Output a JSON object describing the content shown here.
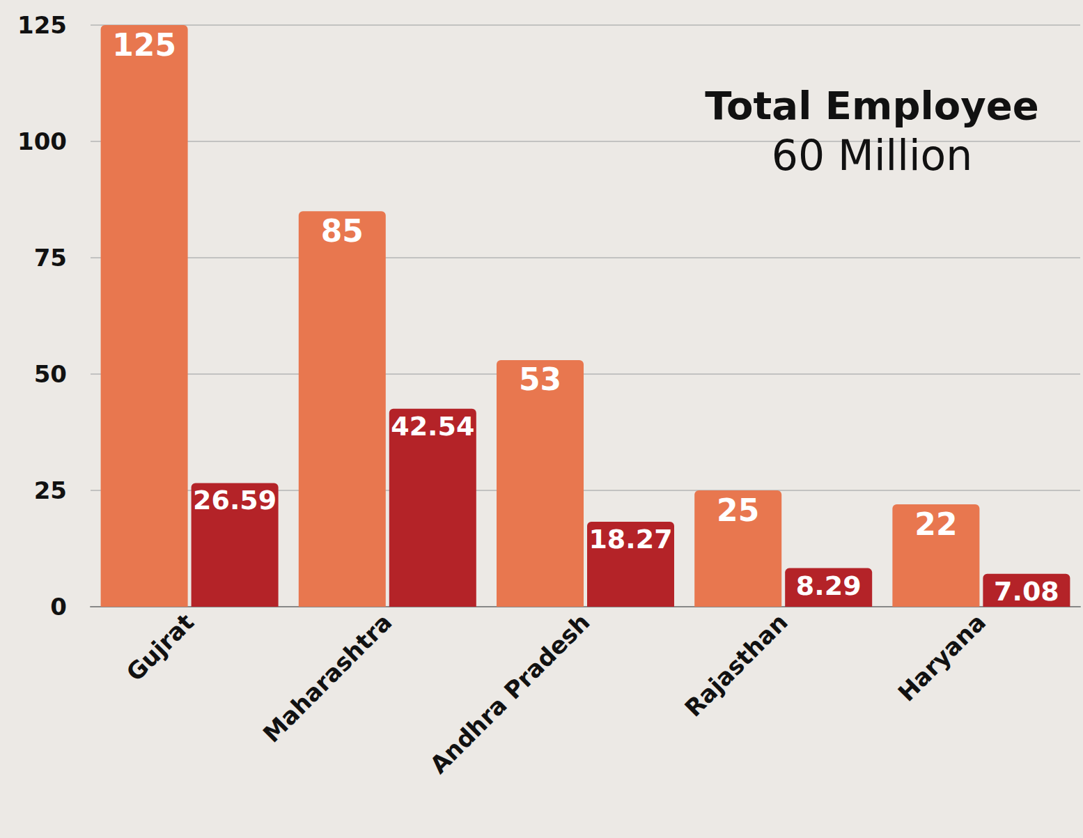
{
  "chart_data": {
    "type": "bar",
    "title": "Total Employee",
    "subtitle": "60 Million",
    "categories": [
      "Gujrat",
      "Maharashtra",
      "Andhra Pradesh",
      "Rajasthan",
      "Haryana"
    ],
    "series": [
      {
        "color": "#e8774f",
        "values": [
          125,
          85,
          53,
          25,
          22
        ]
      },
      {
        "color": "#b42328",
        "values": [
          26.59,
          42.54,
          18.27,
          8.29,
          7.08
        ]
      }
    ],
    "ylim": [
      0,
      125
    ],
    "yticks": [
      0,
      25,
      50,
      75,
      100,
      125
    ],
    "grid": true,
    "data_labels": true
  }
}
